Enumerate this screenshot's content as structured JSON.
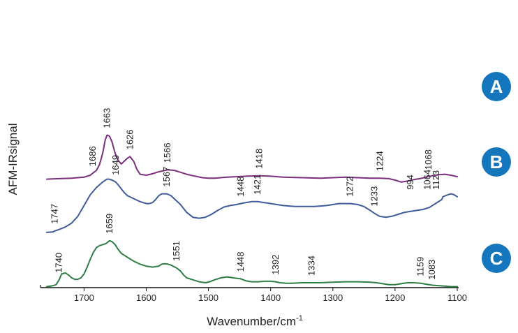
{
  "chart_data": {
    "type": "line",
    "title": "",
    "xlabel": "Wavenumber/cm",
    "xlabel_sup": "-1",
    "ylabel": "AFM-IRsignal",
    "xlim": [
      1770,
      1100
    ],
    "x_reversed": true,
    "x_ticks": [
      1700,
      1600,
      1500,
      1400,
      1300,
      1200,
      1100
    ],
    "y_ticks": [],
    "grid": false,
    "series": [
      {
        "name": "A",
        "color": "#7b2f7e",
        "badge_color": "#1476bd",
        "offset": 2.2,
        "x": [
          1760,
          1740,
          1720,
          1700,
          1690,
          1686,
          1680,
          1675,
          1670,
          1666,
          1663,
          1659,
          1655,
          1650,
          1645,
          1640,
          1636,
          1630,
          1626,
          1620,
          1615,
          1610,
          1600,
          1590,
          1580,
          1566,
          1555,
          1545,
          1535,
          1525,
          1510,
          1500,
          1490,
          1480,
          1470,
          1455,
          1440,
          1418,
          1400,
          1380,
          1350,
          1320,
          1300,
          1280,
          1260,
          1240,
          1224,
          1210,
          1200,
          1190,
          1180,
          1170,
          1160,
          1150,
          1140,
          1130,
          1120,
          1110,
          1100
        ],
        "y": [
          0.02,
          0.03,
          0.04,
          0.06,
          0.1,
          0.14,
          0.2,
          0.32,
          0.55,
          0.82,
          0.92,
          0.9,
          0.78,
          0.55,
          0.4,
          0.33,
          0.38,
          0.45,
          0.48,
          0.38,
          0.22,
          0.12,
          0.1,
          0.13,
          0.17,
          0.21,
          0.2,
          0.16,
          0.12,
          0.09,
          0.05,
          0.04,
          0.04,
          0.05,
          0.06,
          0.07,
          0.08,
          0.09,
          0.08,
          0.06,
          0.05,
          0.04,
          0.05,
          0.06,
          0.05,
          0.04,
          0.04,
          0.03,
          0.0,
          -0.04,
          -0.02,
          0.01,
          0.03,
          0.06,
          0.09,
          0.11,
          0.12,
          0.1,
          0.07
        ]
      },
      {
        "name": "B",
        "color": "#3f5b9b",
        "badge_color": "#1476bd",
        "offset": 1.1,
        "x": [
          1760,
          1750,
          1747,
          1740,
          1730,
          1720,
          1710,
          1700,
          1690,
          1680,
          1670,
          1663,
          1660,
          1655,
          1649,
          1645,
          1640,
          1635,
          1630,
          1620,
          1610,
          1600,
          1595,
          1590,
          1585,
          1580,
          1575,
          1567,
          1560,
          1555,
          1545,
          1535,
          1525,
          1515,
          1505,
          1495,
          1485,
          1475,
          1465,
          1455,
          1448,
          1440,
          1430,
          1421,
          1410,
          1400,
          1390,
          1380,
          1370,
          1360,
          1350,
          1340,
          1330,
          1320,
          1310,
          1300,
          1290,
          1280,
          1272,
          1260,
          1250,
          1245,
          1240,
          1233,
          1225,
          1215,
          1205,
          1195,
          1185,
          1175,
          1165,
          1155,
          1145,
          1135,
          1125,
          1123,
          1115,
          1110,
          1105,
          1100
        ],
        "y": [
          0.03,
          0.04,
          0.06,
          0.09,
          0.14,
          0.22,
          0.36,
          0.58,
          0.8,
          0.95,
          1.06,
          1.12,
          1.12,
          1.1,
          1.06,
          1.0,
          0.92,
          0.84,
          0.78,
          0.72,
          0.66,
          0.62,
          0.62,
          0.64,
          0.7,
          0.78,
          0.82,
          0.82,
          0.78,
          0.72,
          0.6,
          0.44,
          0.34,
          0.32,
          0.34,
          0.4,
          0.48,
          0.55,
          0.58,
          0.6,
          0.62,
          0.64,
          0.66,
          0.66,
          0.64,
          0.62,
          0.6,
          0.58,
          0.57,
          0.56,
          0.56,
          0.56,
          0.56,
          0.57,
          0.58,
          0.6,
          0.62,
          0.62,
          0.62,
          0.6,
          0.56,
          0.52,
          0.48,
          0.42,
          0.36,
          0.34,
          0.36,
          0.4,
          0.44,
          0.46,
          0.48,
          0.5,
          0.54,
          0.62,
          0.7,
          0.76,
          0.8,
          0.82,
          0.8,
          0.76
        ]
      },
      {
        "name": "C",
        "color": "#2f7d46",
        "badge_color": "#1476bd",
        "offset": 0.0,
        "x": [
          1760,
          1750,
          1745,
          1740,
          1736,
          1730,
          1725,
          1720,
          1715,
          1710,
          1705,
          1700,
          1695,
          1690,
          1685,
          1680,
          1675,
          1670,
          1665,
          1659,
          1655,
          1650,
          1645,
          1640,
          1635,
          1630,
          1620,
          1610,
          1600,
          1590,
          1580,
          1575,
          1570,
          1565,
          1560,
          1551,
          1545,
          1540,
          1535,
          1525,
          1515,
          1505,
          1498,
          1490,
          1480,
          1470,
          1460,
          1448,
          1440,
          1430,
          1420,
          1410,
          1400,
          1392,
          1385,
          1375,
          1365,
          1350,
          1334,
          1320,
          1300,
          1280,
          1260,
          1240,
          1230,
          1220,
          1210,
          1200,
          1190,
          1180,
          1170,
          1159,
          1150,
          1140,
          1130,
          1120,
          1110,
          1100
        ],
        "y": [
          0.02,
          0.04,
          0.06,
          0.16,
          0.28,
          0.3,
          0.26,
          0.2,
          0.17,
          0.17,
          0.2,
          0.28,
          0.42,
          0.58,
          0.72,
          0.82,
          0.86,
          0.88,
          0.9,
          0.96,
          0.94,
          0.88,
          0.78,
          0.7,
          0.66,
          0.62,
          0.54,
          0.48,
          0.44,
          0.42,
          0.44,
          0.48,
          0.49,
          0.48,
          0.46,
          0.4,
          0.34,
          0.26,
          0.2,
          0.16,
          0.12,
          0.1,
          0.12,
          0.16,
          0.2,
          0.22,
          0.2,
          0.18,
          0.14,
          0.12,
          0.12,
          0.13,
          0.13,
          0.12,
          0.1,
          0.09,
          0.09,
          0.1,
          0.1,
          0.1,
          0.11,
          0.12,
          0.12,
          0.11,
          0.1,
          0.08,
          0.06,
          0.06,
          0.08,
          0.1,
          0.1,
          0.09,
          0.07,
          0.05,
          0.04,
          0.03,
          0.02,
          0.02
        ]
      }
    ],
    "peak_annotations": [
      {
        "series": "A",
        "x": 1686,
        "label": "1686"
      },
      {
        "series": "A",
        "x": 1663,
        "label": "1663"
      },
      {
        "series": "A",
        "x": 1626,
        "label": "1626"
      },
      {
        "series": "A",
        "x": 1566,
        "label": "1566"
      },
      {
        "series": "A",
        "x": 1418,
        "label": "1418"
      },
      {
        "series": "A",
        "x": 1224,
        "label": "1224"
      },
      {
        "series": "A",
        "x": 1068,
        "label": "1068"
      },
      {
        "series": "B",
        "x": 1747,
        "label": "1747"
      },
      {
        "series": "B",
        "x": 1649,
        "label": "1649"
      },
      {
        "series": "B",
        "x": 1567,
        "label": "1567"
      },
      {
        "series": "B",
        "x": 1448,
        "label": "1448"
      },
      {
        "series": "B",
        "x": 1421,
        "label": "1421"
      },
      {
        "series": "B",
        "x": 1272,
        "label": "1272"
      },
      {
        "series": "B",
        "x": 1233,
        "label": "1233"
      },
      {
        "series": "B",
        "x": 1123,
        "label": "1123"
      },
      {
        "series": "B",
        "x": 1064,
        "label": "1064"
      },
      {
        "series": "B",
        "x": 994,
        "label": "994"
      },
      {
        "series": "C",
        "x": 1740,
        "label": "1740"
      },
      {
        "series": "C",
        "x": 1659,
        "label": "1659"
      },
      {
        "series": "C",
        "x": 1551,
        "label": "1551"
      },
      {
        "series": "C",
        "x": 1448,
        "label": "1448"
      },
      {
        "series": "C",
        "x": 1392,
        "label": "1392"
      },
      {
        "series": "C",
        "x": 1334,
        "label": "1334"
      },
      {
        "series": "C",
        "x": 1159,
        "label": "1159"
      },
      {
        "series": "C",
        "x": 1083,
        "label": "1083"
      }
    ]
  }
}
